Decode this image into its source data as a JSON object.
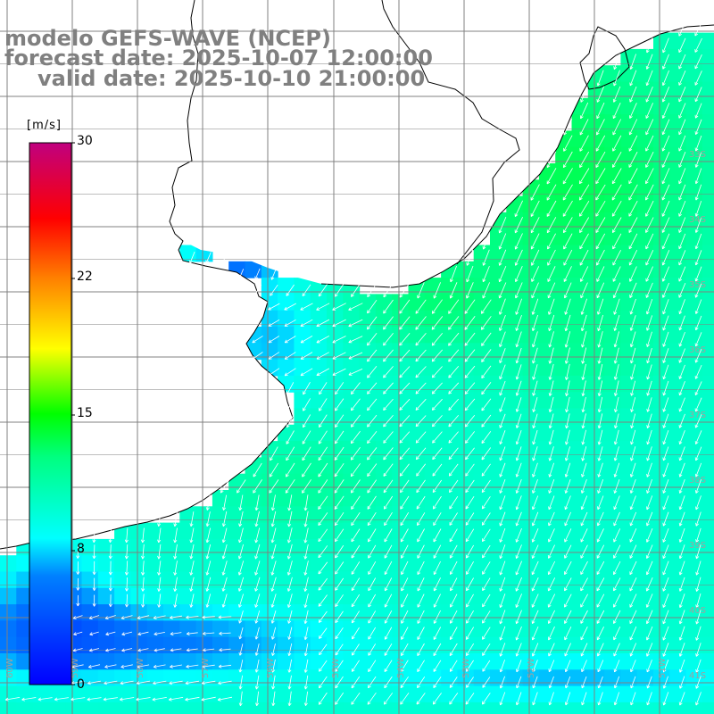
{
  "titles": {
    "model": "modelo GEFS-WAVE (NCEP)",
    "forecast": "forecast date: 2025-10-07 12:00:00",
    "valid": "valid date: 2025-10-10 21:00:00"
  },
  "colorbar": {
    "units": "[m/s]",
    "ticks": [
      "30",
      "22",
      "15",
      "8",
      "0"
    ],
    "tick_values": [
      30,
      22,
      15,
      8,
      0
    ],
    "range": [
      0,
      30
    ],
    "colors": [
      "#0000ff",
      "#00a0ff",
      "#00ffff",
      "#00ff00",
      "#ffff00",
      "#ff8000",
      "#ff0000",
      "#c0007f"
    ]
  },
  "map": {
    "lat_labels": [
      "33S",
      "34S",
      "35S",
      "36S",
      "37S",
      "38S",
      "39S",
      "40S",
      "41S"
    ],
    "lon_labels": [
      "60W",
      "59W",
      "58W",
      "57W",
      "56W",
      "55W",
      "54W",
      "53W",
      "52W",
      "51W"
    ],
    "land_color": "#ffffff",
    "coast_color": "#000000",
    "grid_color": "#808080",
    "arrow_color": "#ffffff"
  }
}
